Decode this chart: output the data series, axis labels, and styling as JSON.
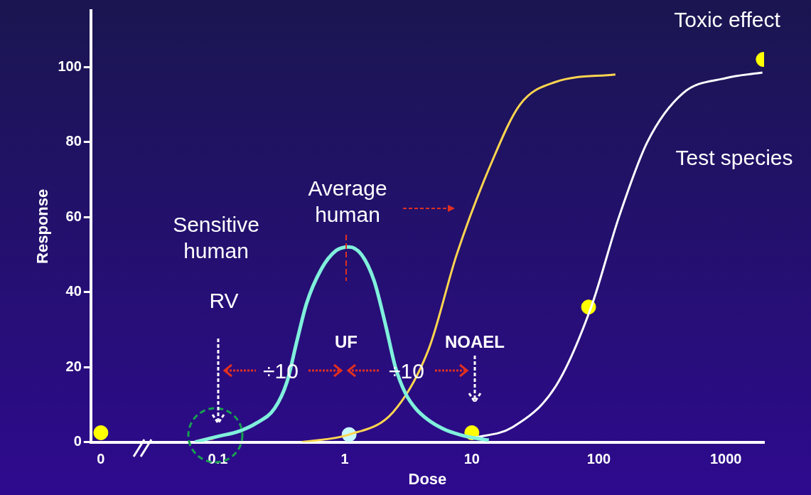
{
  "chart_data": {
    "type": "line",
    "xlabel": "Dose",
    "ylabel": "Response",
    "log": "x",
    "grid": false,
    "legend": false,
    "xlim": [
      0.01,
      2000
    ],
    "xticks": [
      {
        "value": 0.012,
        "label": "0"
      },
      0.1,
      1,
      10,
      100,
      1000
    ],
    "ylim": [
      0,
      115
    ],
    "yticks": [
      0,
      20,
      40,
      60,
      80,
      100
    ],
    "series": [
      {
        "type": "line",
        "color": "#80f0dc",
        "marker": "none",
        "x": [
          0.066,
          0.1,
          0.15,
          0.2,
          0.28,
          0.35,
          0.42,
          0.5,
          0.65,
          0.85,
          1.08,
          1.35,
          1.7,
          2.1,
          2.5,
          3.0,
          3.6,
          4.5,
          6,
          8,
          10.9,
          13.6
        ],
        "values": [
          0,
          1.5,
          3,
          5,
          9,
          16,
          27,
          37,
          46,
          51,
          52,
          50,
          43,
          31,
          20,
          13,
          9,
          6,
          3.5,
          2,
          1,
          0.5
        ]
      },
      {
        "type": "line",
        "color": "#ffd54f",
        "marker": "none",
        "x": [
          0.46,
          1.08,
          2.4,
          4.6,
          7.6,
          14.5,
          24,
          45.6,
          135
        ],
        "values": [
          0,
          2,
          8,
          25,
          50,
          75,
          90,
          96,
          98
        ]
      },
      {
        "type": "line",
        "color": "#ffffff",
        "marker": "none",
        "x": [
          10,
          21,
          46,
          87,
          144,
          241,
          459,
          990,
          1940
        ],
        "values": [
          1,
          4,
          15,
          36,
          60,
          80,
          93,
          97,
          98.5
        ]
      },
      {
        "type": "scatter",
        "marker": "circle",
        "colors": [
          "#ffff00",
          "#ffff00",
          "#ffff00",
          "#ffff00",
          "#c8f8ff"
        ],
        "x": [
          0.012,
          10,
          83,
          1970,
          1.08
        ],
        "values": [
          2.5,
          2.5,
          36,
          102,
          2
        ]
      }
    ],
    "annotations": [
      "Toxic effect",
      "Test species",
      "Average\nhuman",
      "Sensitive\nhuman",
      "RV",
      "UF",
      "NOAEL",
      "÷10",
      "÷10"
    ]
  }
}
